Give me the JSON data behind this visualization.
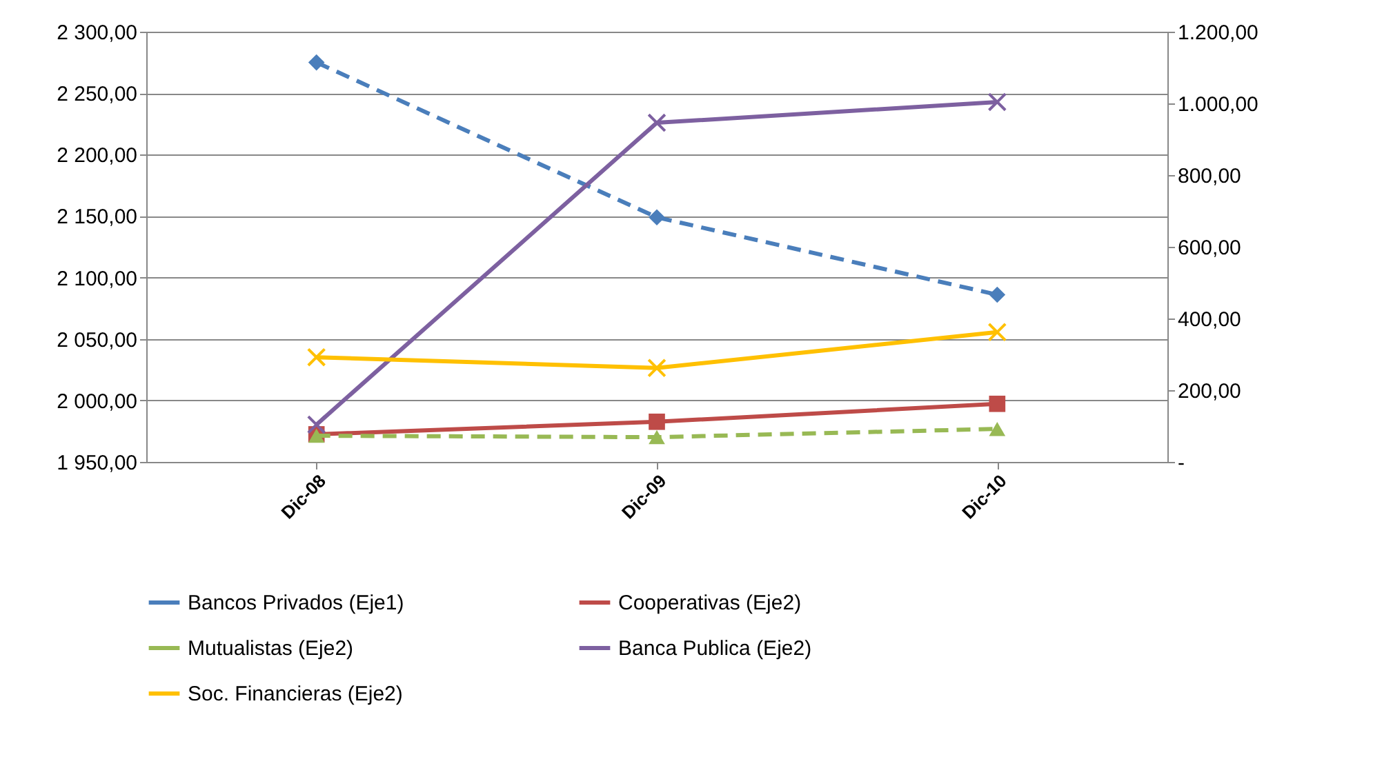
{
  "chart_data": {
    "type": "line",
    "categories": [
      "Dic-08",
      "Dic-09",
      "Dic-10"
    ],
    "series": [
      {
        "name": "Bancos Privados (Eje1)",
        "color": "#4a7ebb",
        "values": [
          2275,
          2149,
          2086
        ],
        "marker": "diamond",
        "line_style": "dashed"
      },
      {
        "name": "Cooperativas (Eje2)",
        "color": "#be4b48",
        "values": [
          77,
          112,
          162
        ],
        "marker": "square",
        "line_style": "solid",
        "axis": "y2"
      },
      {
        "name": "Mutualistas (Eje2)",
        "color": "#98b954",
        "values": [
          73,
          69,
          92
        ],
        "marker": "triangle",
        "line_style": "dashed",
        "axis": "y2"
      },
      {
        "name": "Banca Publica (Eje2)",
        "color": "#7d60a0",
        "values": [
          104,
          946,
          1004
        ],
        "marker": "cross",
        "line_style": "solid",
        "axis": "y2"
      },
      {
        "name": "Soc. Financieras (Eje2)",
        "color": "#ffc000",
        "values": [
          292,
          262,
          362
        ],
        "marker": "cross",
        "line_style": "solid",
        "axis": "y2"
      }
    ],
    "ylim": [
      1950,
      2300
    ],
    "yticks": [
      {
        "value": 1950,
        "label": "1 950,00"
      },
      {
        "value": 2000,
        "label": "2 000,00"
      },
      {
        "value": 2050,
        "label": "2 050,00"
      },
      {
        "value": 2100,
        "label": "2 100,00"
      },
      {
        "value": 2150,
        "label": "2 150,00"
      },
      {
        "value": 2200,
        "label": "2 200,00"
      },
      {
        "value": 2250,
        "label": "2 250,00"
      },
      {
        "value": 2300,
        "label": "2 300,00"
      }
    ],
    "y2lim": [
      0,
      1200
    ],
    "y2ticks": [
      {
        "value": 0,
        "label": "-"
      },
      {
        "value": 200,
        "label": "200,00"
      },
      {
        "value": 400,
        "label": "400,00"
      },
      {
        "value": 600,
        "label": "600,00"
      },
      {
        "value": 800,
        "label": "800,00"
      },
      {
        "value": 1000,
        "label": "1.000,00"
      },
      {
        "value": 1200,
        "label": "1.200,00"
      }
    ],
    "grid": "y",
    "legend": "bottom"
  }
}
